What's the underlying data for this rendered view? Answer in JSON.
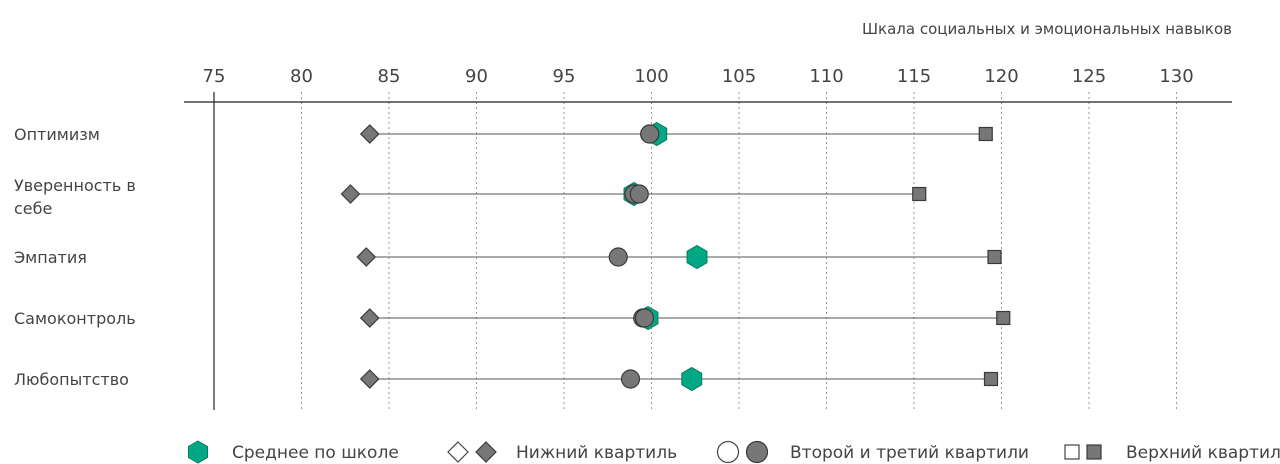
{
  "chart_data": {
    "type": "dot-range",
    "title": "",
    "xlabel": "Шкала социальных и эмоциональных навыков",
    "xlim": [
      73,
      133
    ],
    "xticks": [
      75,
      80,
      85,
      90,
      95,
      100,
      105,
      110,
      115,
      120,
      125,
      130
    ],
    "grid": "vertical-dotted",
    "legend_position": "bottom",
    "categories": [
      {
        "label_lines": [
          "Оптимизм"
        ],
        "lower_quartile": 83.9,
        "second_quartile": 100.3,
        "third_quartile": 99.9,
        "upper_quartile": 119.1,
        "school_mean": 100.3
      },
      {
        "label_lines": [
          "Уверенность в",
          "себе"
        ],
        "lower_quartile": 82.8,
        "second_quartile": 99.0,
        "third_quartile": 99.3,
        "upper_quartile": 115.3,
        "school_mean": 99.0
      },
      {
        "label_lines": [
          "Эмпатия"
        ],
        "lower_quartile": 83.7,
        "second_quartile": 98.1,
        "third_quartile": 98.1,
        "upper_quartile": 119.6,
        "school_mean": 102.6
      },
      {
        "label_lines": [
          "Самоконтроль"
        ],
        "lower_quartile": 83.9,
        "second_quartile": 99.5,
        "third_quartile": 99.6,
        "upper_quartile": 120.1,
        "school_mean": 99.8
      },
      {
        "label_lines": [
          "Любопытство"
        ],
        "lower_quartile": 83.9,
        "second_quartile": 98.8,
        "third_quartile": 98.8,
        "upper_quartile": 119.4,
        "school_mean": 102.3
      }
    ],
    "legend": [
      {
        "key": "school_mean",
        "label": "Среднее по школе",
        "color": "#00a884"
      },
      {
        "key": "lower_quartile",
        "label": "Нижний квартиль",
        "color": "#777777"
      },
      {
        "key": "middle_quartiles",
        "label": "Второй и третий квартили",
        "color": "#777777"
      },
      {
        "key": "upper_quartile",
        "label": "Верхний квартиль",
        "color": "#777777"
      }
    ],
    "colors": {
      "mean": "#00a884",
      "mean_stroke": "#0b7a5e",
      "marker": "#777777",
      "marker_stroke": "#3a3a3a",
      "line": "#555555",
      "grid": "#9a9a9a"
    }
  }
}
